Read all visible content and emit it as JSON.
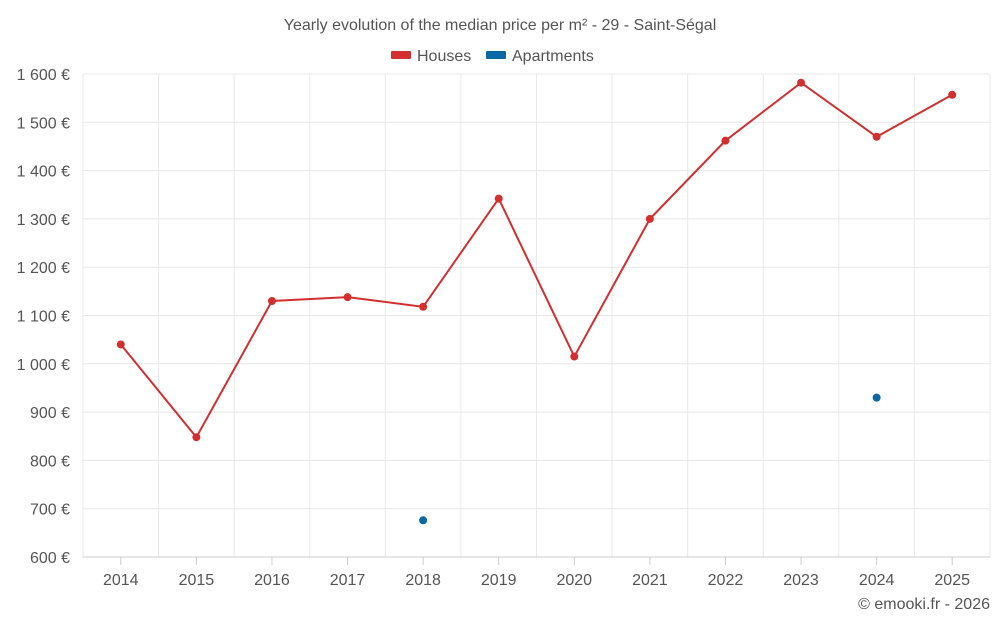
{
  "chart_data": {
    "type": "line",
    "title": "Yearly evolution of the median price per m² - 29 - Saint-Ségal",
    "categories": [
      "2014",
      "2015",
      "2016",
      "2017",
      "2018",
      "2019",
      "2020",
      "2021",
      "2022",
      "2023",
      "2024",
      "2025"
    ],
    "y_ticks": [
      "600 €",
      "700 €",
      "800 €",
      "900 €",
      "1 000 €",
      "1 100 €",
      "1 200 €",
      "1 300 €",
      "1 400 €",
      "1 500 €",
      "1 600 €"
    ],
    "ylim": [
      600,
      1600
    ],
    "legend_position": "top-center",
    "series": [
      {
        "name": "Houses",
        "color": "#d32f2f",
        "values": [
          1040,
          848,
          1130,
          1138,
          1118,
          1342,
          1015,
          1300,
          1462,
          1582,
          1470,
          1557
        ]
      },
      {
        "name": "Apartments",
        "color": "#0868a6",
        "values": [
          null,
          null,
          null,
          null,
          676,
          null,
          null,
          null,
          null,
          null,
          930,
          null
        ]
      }
    ],
    "credit": "© emooki.fr - 2026"
  }
}
